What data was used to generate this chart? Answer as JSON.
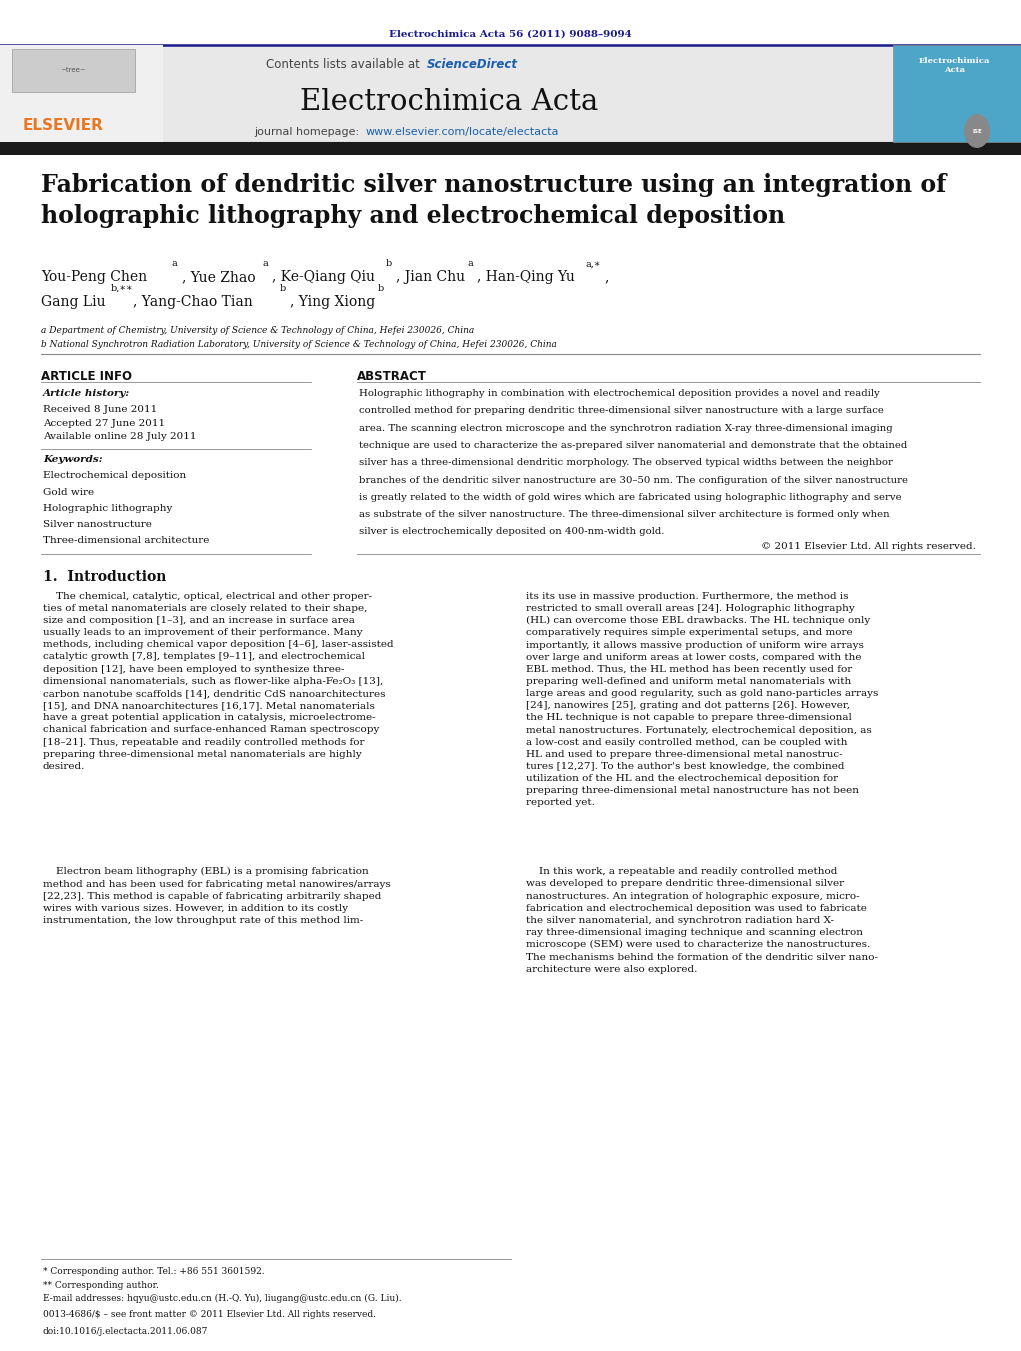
{
  "page_width": 10.21,
  "page_height": 13.51,
  "bg_color": "#ffffff",
  "journal_ref": "Electrochimica Acta 56 (2011) 9088–9094",
  "journal_ref_color": "#1a1a8c",
  "contents_text": "Contents lists available at ",
  "sciencedirect_text": "ScienceDirect",
  "sciencedirect_color": "#1a5fad",
  "journal_name": "Electrochimica Acta",
  "journal_homepage_prefix": "journal homepage: ",
  "journal_homepage_url": "www.elsevier.com/locate/electacta",
  "journal_homepage_url_color": "#1a5fad",
  "header_bg_color": "#e8e8e8",
  "header_border_color": "#1a1a8c",
  "dark_bar_color": "#1a1a1a",
  "article_title": "Fabrication of dendritic silver nanostructure using an integration of\nholographic lithography and electrochemical deposition",
  "affil_a": "a Department of Chemistry, University of Science & Technology of China, Hefei 230026, China",
  "affil_b": "b National Synchrotron Radiation Laboratory, University of Science & Technology of China, Hefei 230026, China",
  "article_info_title": "ARTICLE INFO",
  "abstract_title": "ABSTRACT",
  "article_history_label": "Article history:",
  "received": "Received 8 June 2011",
  "accepted": "Accepted 27 June 2011",
  "available": "Available online 28 July 2011",
  "keywords_label": "Keywords:",
  "keyword1": "Electrochemical deposition",
  "keyword2": "Gold wire",
  "keyword3": "Holographic lithography",
  "keyword4": "Silver nanostructure",
  "keyword5": "Three-dimensional architecture",
  "copyright": "© 2011 Elsevier Ltd. All rights reserved.",
  "section1_title": "1.  Introduction",
  "footnote_star": "* Corresponding author. Tel.: +86 551 3601592.",
  "footnote_dstar": "** Corresponding author.",
  "footnote_email": "E-mail addresses: hqyu@ustc.edu.cn (H.-Q. Yu), liugang@ustc.edu.cn (G. Liu).",
  "issn_text": "0013-4686/$ – see front matter © 2011 Elsevier Ltd. All rights reserved.",
  "doi_text": "doi:10.1016/j.electacta.2011.06.087"
}
